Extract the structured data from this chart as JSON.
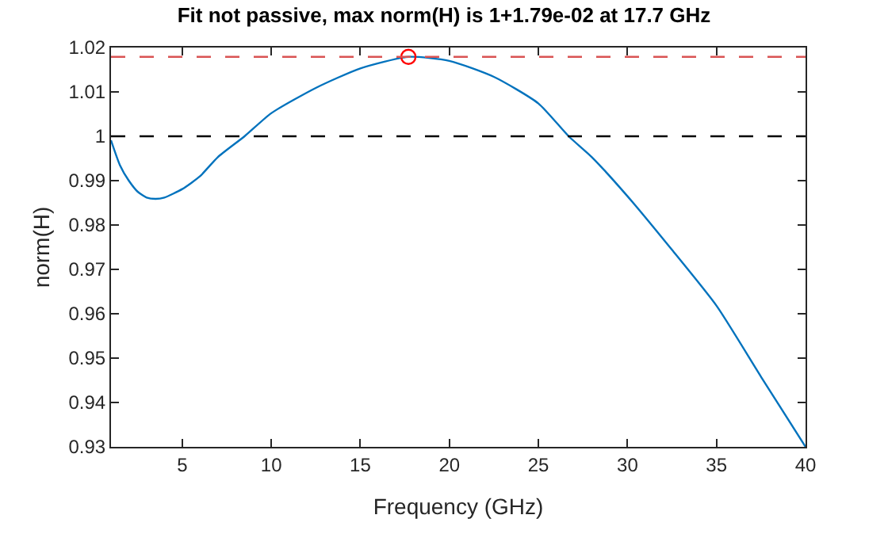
{
  "chart_data": {
    "type": "line",
    "title": "Fit not passive, max norm(H) is 1+1.79e-02 at 17.7 GHz",
    "xlabel": "Frequency (GHz)",
    "ylabel": "norm(H)",
    "series": [
      {
        "color": "#0072bd",
        "x": [
          1,
          1.5,
          2,
          2.5,
          3,
          3.5,
          4,
          5,
          6,
          7,
          8.5,
          10,
          12.5,
          15,
          17.7,
          20,
          22.5,
          25,
          26.7,
          28,
          30,
          32.5,
          35,
          37.5,
          40
        ],
        "values": [
          0.9991,
          0.9935,
          0.99,
          0.9875,
          0.9862,
          0.9859,
          0.9862,
          0.9881,
          0.991,
          0.9953,
          1.0,
          1.0052,
          1.0109,
          1.0153,
          1.0179,
          1.017,
          1.0134,
          1.0074,
          1.0,
          0.9953,
          0.9865,
          0.9744,
          0.9618,
          0.9458,
          0.93
        ],
        "marker": "none",
        "line_style": "solid"
      },
      {
        "type": "scatter",
        "color": "#ff0000",
        "x": [
          17.7
        ],
        "values": [
          1.0179
        ],
        "marker": "circle"
      }
    ],
    "ref_lines": [
      {
        "axis": "y",
        "value": 1,
        "color": "#000000",
        "line_style": "dashed"
      },
      {
        "axis": "y",
        "value": 1.0179,
        "color": "#d95353",
        "line_style": "dashed"
      }
    ],
    "xlim": [
      1,
      40
    ],
    "xticks": [
      5,
      10,
      15,
      20,
      25,
      30,
      35,
      40
    ],
    "yticks": [
      0.93,
      0.94,
      0.95,
      0.96,
      0.97,
      0.98,
      0.99,
      1,
      1.01,
      1.02
    ],
    "ylim": [
      0.93,
      1.02
    ]
  }
}
